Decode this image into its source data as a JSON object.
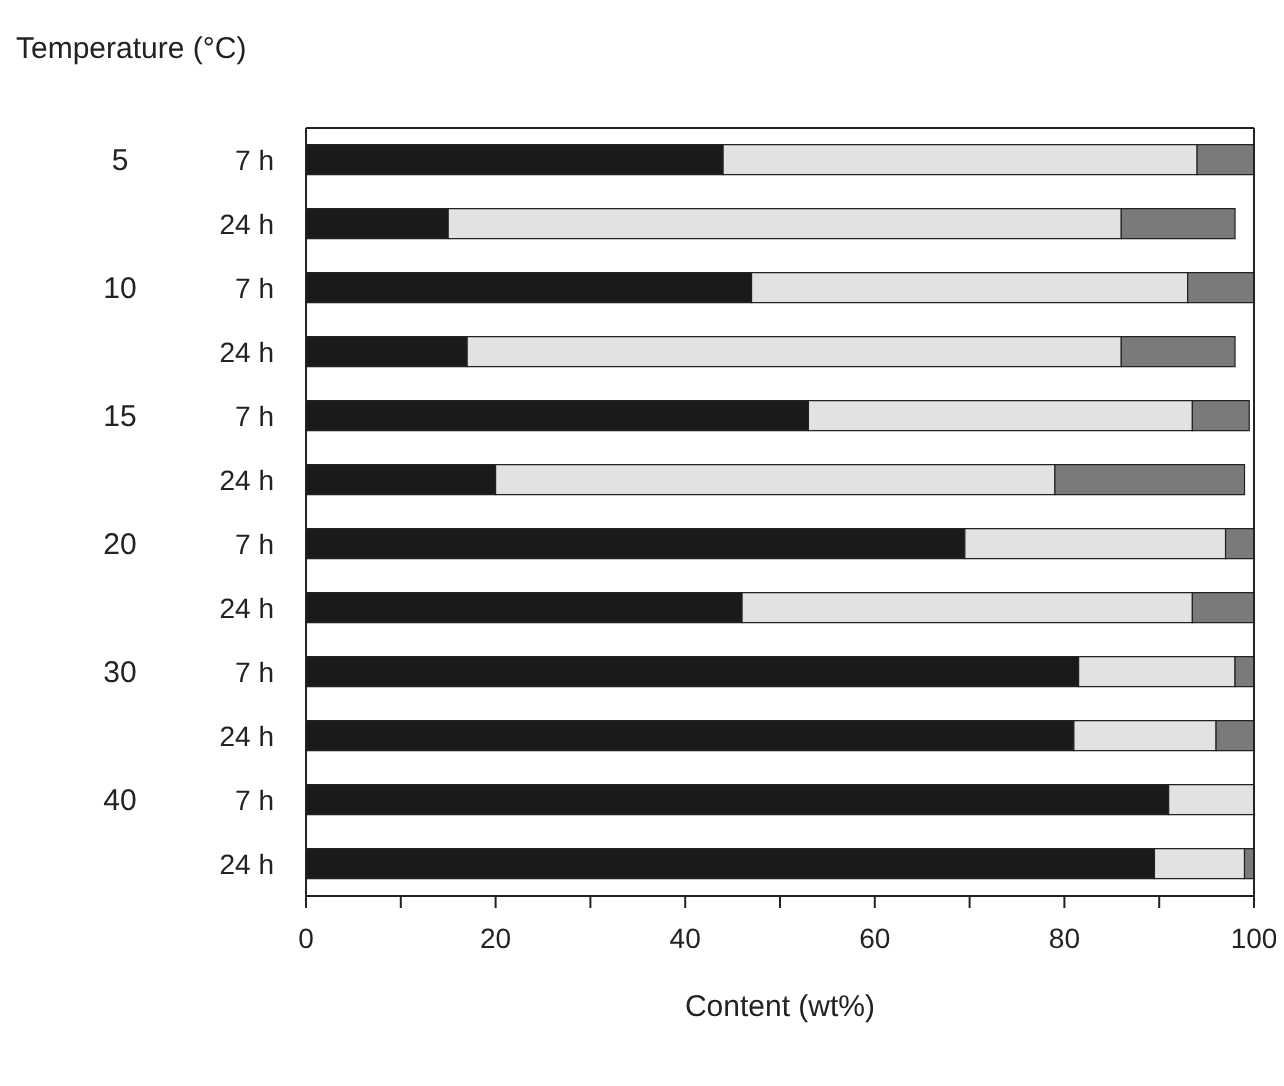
{
  "chart_data": {
    "type": "bar",
    "orientation": "horizontal",
    "stacked": true,
    "ylabel": "Temperature (°C)",
    "xlabel": "Content (wt%)",
    "annotations": [
      "5",
      "10",
      "15",
      "20",
      "30",
      "40"
    ],
    "categories": [
      "7 h",
      "24 h",
      "7 h",
      "24 h",
      "7 h",
      "24 h",
      "7 h",
      "24 h",
      "7 h",
      "24 h",
      "7 h",
      "24 h"
    ],
    "series": [
      {
        "color": "#1a1a1a",
        "values": [
          44,
          15,
          47,
          17,
          53,
          20,
          69.5,
          46,
          81.5,
          81,
          91,
          89.5
        ]
      },
      {
        "color": "#e2e2e2",
        "values": [
          50,
          71,
          46,
          69,
          40.5,
          59,
          27.5,
          47.5,
          16.5,
          15,
          9,
          9.5
        ]
      },
      {
        "color": "#7a7a7a",
        "values": [
          6,
          12,
          7,
          12,
          6,
          20,
          3,
          6.5,
          2,
          4,
          0,
          1
        ]
      }
    ],
    "xlim": [
      0,
      100
    ],
    "xticks": [
      0,
      {
        "value": 10,
        "label": null
      },
      20,
      {
        "value": 30,
        "label": null
      },
      40,
      {
        "value": 50,
        "label": null
      },
      60,
      {
        "value": 70,
        "label": null
      },
      80,
      {
        "value": 90,
        "label": null
      },
      100
    ],
    "grid": false,
    "legend": false
  }
}
